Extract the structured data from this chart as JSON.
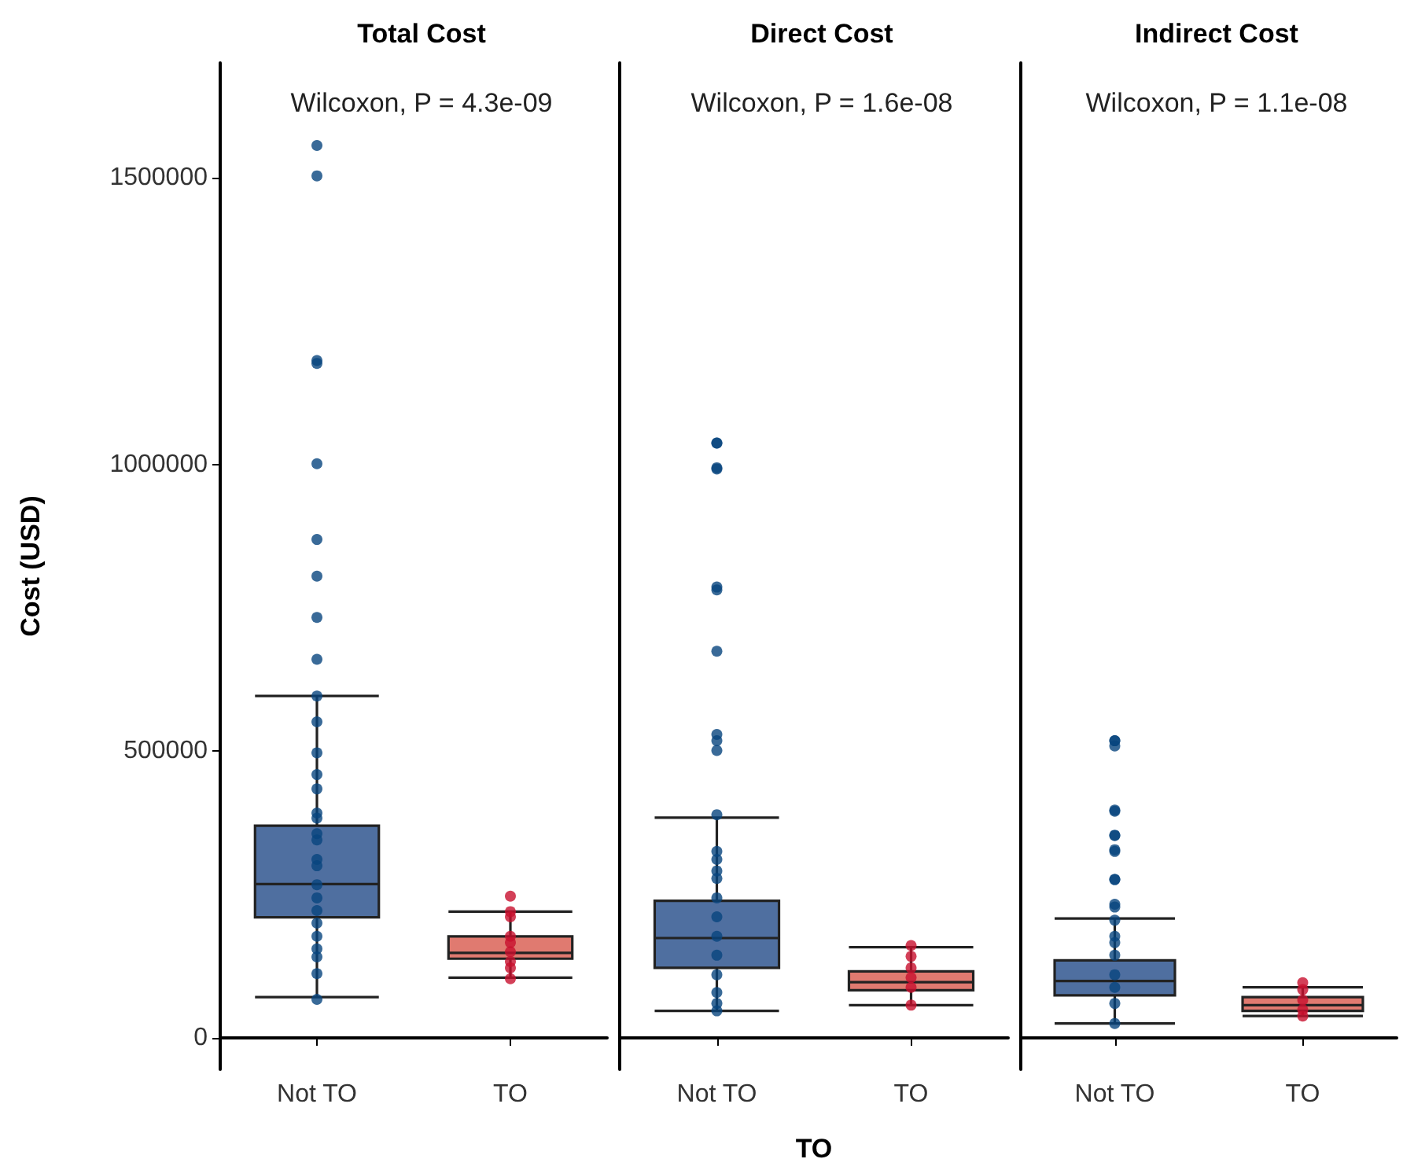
{
  "chart_data": [
    {
      "type": "box",
      "title": "Total Cost",
      "ylabel": "Cost (USD)",
      "annotations": [
        "Wilcoxon, P = 4.3e-09"
      ],
      "categories": [
        "Not TO",
        "TO"
      ],
      "ylim": [
        -55000,
        1700000
      ],
      "yticks": [
        0,
        500000,
        1000000,
        1500000
      ],
      "marker": "circle",
      "series": [
        {
          "colors": [
            "#4f6fa0",
            "#e07a70"
          ],
          "boxes": [
            {
              "low": 71000,
              "q1": 210000,
              "median": 268000,
              "q3": 370000,
              "high": 596000,
              "outliers": [
                1556000,
                1503000,
                1181000,
                1176000,
                1001000,
                869000,
                805000,
                733000,
                660000
              ]
            },
            {
              "low": 105000,
              "q1": 138000,
              "median": 148000,
              "q3": 177000,
              "high": 220000,
              "outliers": [
                247000
              ]
            }
          ]
        },
        {
          "type": "scatter",
          "color": "#08457e",
          "x": [
            "Not TO",
            "Not TO",
            "Not TO",
            "Not TO",
            "Not TO",
            "Not TO",
            "Not TO",
            "Not TO",
            "Not TO",
            "Not TO",
            "Not TO",
            "Not TO",
            "Not TO",
            "Not TO",
            "Not TO",
            "Not TO",
            "Not TO",
            "Not TO",
            "Not TO",
            "Not TO",
            "Not TO"
          ],
          "values": [
            596000,
            551000,
            497000,
            459000,
            null,
            434000,
            392000,
            383000,
            356000,
            345000,
            311000,
            300000,
            267000,
            244000,
            222000,
            200000,
            177000,
            155000,
            141000,
            112000,
            67000
          ]
        },
        {
          "type": "scatter",
          "color": "#c8102e",
          "x": [
            "TO",
            "TO",
            "TO",
            "TO",
            "TO",
            "TO",
            "TO",
            "TO"
          ],
          "values": [
            211000,
            220000,
            177000,
            166000,
            150000,
            133000,
            122000,
            103000
          ]
        }
      ]
    },
    {
      "type": "box",
      "title": "Direct Cost",
      "xlabel": "TO",
      "annotations": [
        "Wilcoxon, P = 1.6e-08"
      ],
      "categories": [
        "Not TO",
        "TO"
      ],
      "ylim": [
        -55000,
        1700000
      ],
      "yticks": [
        0,
        500000,
        1000000,
        1500000
      ],
      "tick_labels": "x",
      "marker": "circle",
      "series": [
        {
          "colors": [
            "#4f6fa0",
            "#e07a70"
          ],
          "boxes": [
            {
              "low": 47000,
              "q1": 122000,
              "median": 174000,
              "q3": 239000,
              "high": 384000,
              "outliers": [
                1037000,
                1037000,
                994000,
                992000,
                786000,
                781000,
                674000,
                529000,
                518000,
                501000
              ]
            },
            {
              "low": 57000,
              "q1": 83000,
              "median": 97000,
              "q3": 116000,
              "high": 158000
            }
          ]
        },
        {
          "type": "scatter",
          "color": "#08457e",
          "x": [
            "Not TO",
            "Not TO",
            "Not TO",
            "Not TO",
            "Not TO",
            "Not TO",
            "Not TO",
            "Not TO",
            "Not TO",
            "Not TO",
            "Not TO",
            "Not TO",
            "Not TO"
          ],
          "values": [
            389000,
            325000,
            311000,
            291000,
            278000,
            244000,
            211000,
            177000,
            144000,
            110000,
            79000,
            60000,
            47000
          ]
        },
        {
          "type": "scatter",
          "color": "#c8102e",
          "x": [
            "TO",
            "TO",
            "TO",
            "TO",
            "TO",
            "TO"
          ],
          "values": [
            161000,
            142000,
            122000,
            105000,
            88000,
            57000
          ]
        }
      ]
    },
    {
      "type": "box",
      "title": "Indirect Cost",
      "annotations": [
        "Wilcoxon, P = 1.1e-08"
      ],
      "categories": [
        "Not TO",
        "TO"
      ],
      "ylim": [
        -55000,
        1700000
      ],
      "yticks": [
        0,
        500000,
        1000000,
        1500000
      ],
      "tick_labels": "x",
      "marker": "circle",
      "series": [
        {
          "colors": [
            "#4f6fa0",
            "#e07a70"
          ],
          "boxes": [
            {
              "low": 25000,
              "q1": 74000,
              "median": 99000,
              "q3": 135000,
              "high": 208000,
              "outliers": [
                518000,
                518000,
                509000,
                397000,
                395000,
                353000,
                353000,
                328000,
                325000,
                276000,
                276000,
                233000,
                228000
              ]
            },
            {
              "low": 38000,
              "q1": 47000,
              "median": 57000,
              "q3": 71000,
              "high": 88000,
              "outliers": [
                96000
              ]
            }
          ]
        },
        {
          "type": "scatter",
          "color": "#08457e",
          "x": [
            "Not TO",
            "Not TO",
            "Not TO",
            "Not TO",
            "Not TO",
            "Not TO",
            "Not TO",
            "Not TO"
          ],
          "values": [
            205000,
            177000,
            166000,
            144000,
            110000,
            88000,
            60000,
            25000
          ]
        },
        {
          "type": "scatter",
          "color": "#c8102e",
          "x": [
            "TO",
            "TO",
            "TO",
            "TO"
          ],
          "values": [
            84000,
            66000,
            49000,
            38000
          ]
        }
      ]
    }
  ]
}
